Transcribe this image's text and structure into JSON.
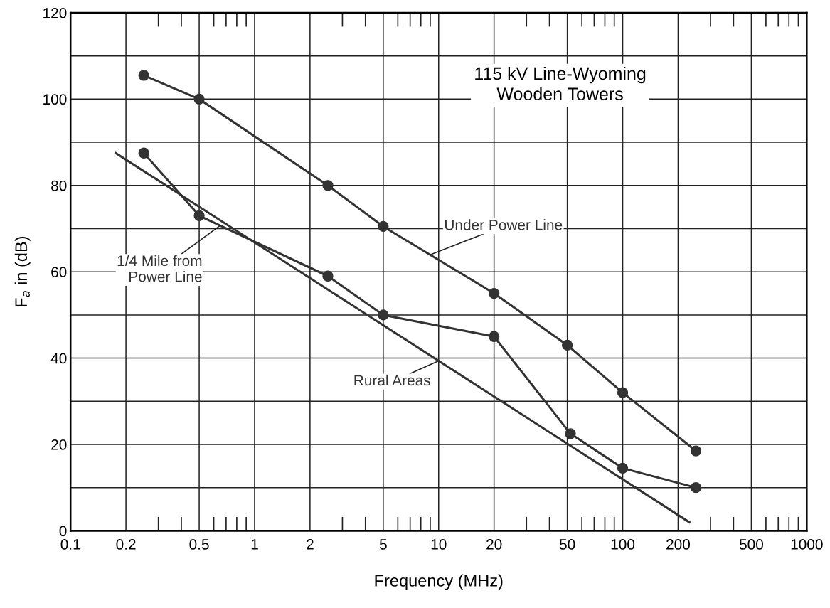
{
  "chart_data": {
    "type": "line",
    "xlabel": "Frequency (MHz)",
    "ylabel": "F$_{a}$ in (dB)",
    "log": "x",
    "xlim": [
      0.1,
      1000
    ],
    "xticks": [
      0.1,
      0.2,
      0.5,
      1,
      2,
      5,
      10,
      20,
      50,
      100,
      200,
      500,
      1000
    ],
    "ylim": [
      0,
      120
    ],
    "yticks": [
      0,
      {
        "value": 10,
        "label": null
      },
      20,
      {
        "value": 30,
        "label": null
      },
      40,
      {
        "value": 50,
        "label": null
      },
      60,
      {
        "value": 70,
        "label": null
      },
      80,
      {
        "value": 90,
        "label": null
      },
      100,
      {
        "value": 110,
        "label": null
      },
      120
    ],
    "grid": true,
    "legend": false,
    "marker": "circle",
    "line_style": "solid",
    "series": [
      {
        "name": "Under Power Line",
        "color": "#333333",
        "x": [
          0.25,
          0.5,
          2.5,
          5,
          20,
          50,
          100,
          250
        ],
        "values": [
          105.5,
          100,
          80,
          70.5,
          55,
          43,
          32,
          18.5
        ]
      },
      {
        "name": "1/4 Mile from\nPower Line",
        "color": "#333333",
        "x": [
          0.25,
          0.5,
          2.5,
          5,
          20,
          52,
          100,
          250
        ],
        "values": [
          87.5,
          73,
          59,
          50,
          45,
          22.5,
          14.5,
          10
        ]
      },
      {
        "name": "Rural Areas",
        "color": "#333333",
        "marker": "none",
        "x": [
          0.176,
          230
        ],
        "values": [
          87.5,
          2
        ]
      }
    ],
    "annotations": [
      "115 kV Line-Wyoming\nWooden Towers"
    ]
  }
}
